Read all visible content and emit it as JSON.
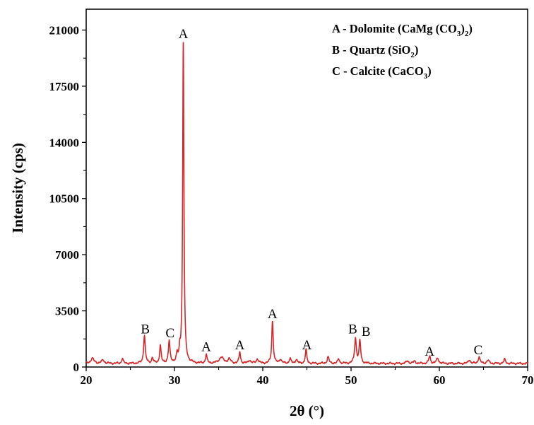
{
  "chart_data": {
    "type": "line",
    "xlabel": "2θ (°)",
    "ylabel": "Intensity (cps)",
    "xlim": [
      20,
      70
    ],
    "ylim": [
      0,
      22300
    ],
    "x_ticks": [
      20,
      30,
      40,
      50,
      60,
      70
    ],
    "y_ticks": [
      0,
      3500,
      7000,
      10500,
      14000,
      17500,
      21000
    ],
    "grid": false,
    "line_color": "#d62728",
    "baseline": 220,
    "series": [
      {
        "peaks": [
          {
            "x": 20.7,
            "y": 320,
            "w": 0.22
          },
          {
            "x": 21.9,
            "y": 200,
            "w": 0.2
          },
          {
            "x": 24.1,
            "y": 320,
            "w": 0.1
          },
          {
            "x": 26.6,
            "y": 1750,
            "w": 0.11
          },
          {
            "x": 27.5,
            "y": 350,
            "w": 0.1
          },
          {
            "x": 28.4,
            "y": 1100,
            "w": 0.1
          },
          {
            "x": 29.4,
            "y": 1350,
            "w": 0.11
          },
          {
            "x": 30.3,
            "y": 450,
            "w": 0.1
          },
          {
            "x": 30.6,
            "y": 600,
            "w": 0.08
          },
          {
            "x": 31.0,
            "y": 20000,
            "w": 0.085
          },
          {
            "x": 33.6,
            "y": 550,
            "w": 0.1
          },
          {
            "x": 35.3,
            "y": 380,
            "w": 0.3
          },
          {
            "x": 36.2,
            "y": 260,
            "w": 0.2
          },
          {
            "x": 37.4,
            "y": 700,
            "w": 0.1
          },
          {
            "x": 38.5,
            "y": 200,
            "w": 0.15
          },
          {
            "x": 39.4,
            "y": 280,
            "w": 0.15
          },
          {
            "x": 41.1,
            "y": 2650,
            "w": 0.1
          },
          {
            "x": 42.0,
            "y": 250,
            "w": 0.15
          },
          {
            "x": 43.1,
            "y": 300,
            "w": 0.12
          },
          {
            "x": 43.8,
            "y": 250,
            "w": 0.12
          },
          {
            "x": 44.9,
            "y": 850,
            "w": 0.1
          },
          {
            "x": 47.4,
            "y": 400,
            "w": 0.12
          },
          {
            "x": 48.6,
            "y": 280,
            "w": 0.12
          },
          {
            "x": 50.5,
            "y": 1550,
            "w": 0.12
          },
          {
            "x": 51.0,
            "y": 1380,
            "w": 0.11
          },
          {
            "x": 56.4,
            "y": 160,
            "w": 0.15
          },
          {
            "x": 57.2,
            "y": 140,
            "w": 0.15
          },
          {
            "x": 58.9,
            "y": 450,
            "w": 0.12
          },
          {
            "x": 59.8,
            "y": 330,
            "w": 0.15
          },
          {
            "x": 63.4,
            "y": 250,
            "w": 0.12
          },
          {
            "x": 64.5,
            "y": 420,
            "w": 0.12
          },
          {
            "x": 65.5,
            "y": 200,
            "w": 0.15
          },
          {
            "x": 67.4,
            "y": 250,
            "w": 0.12
          }
        ]
      }
    ],
    "annotations": [
      {
        "text": "A",
        "x": 31.0,
        "y": 20500
      },
      {
        "text": "B",
        "x": 26.7,
        "y": 2100
      },
      {
        "text": "C",
        "x": 29.5,
        "y": 1850
      },
      {
        "text": "A",
        "x": 33.6,
        "y": 1000
      },
      {
        "text": "A",
        "x": 37.4,
        "y": 1100
      },
      {
        "text": "A",
        "x": 41.1,
        "y": 3050
      },
      {
        "text": "A",
        "x": 45.0,
        "y": 1100
      },
      {
        "text": "B",
        "x": 50.2,
        "y": 2100
      },
      {
        "text": "B",
        "x": 51.7,
        "y": 1950
      },
      {
        "text": "A",
        "x": 58.9,
        "y": 700
      },
      {
        "text": "C",
        "x": 64.4,
        "y": 800
      }
    ],
    "legend": {
      "position": "top-right",
      "entries": [
        {
          "prefix": "A - Dolomite (CaMg (CO",
          "sub1": "3",
          "mid": ")",
          "sub2": "2",
          "suffix": ")"
        },
        {
          "prefix": "B - Quartz (SiO",
          "sub1": "2",
          "mid": ")",
          "sub2": "",
          "suffix": ""
        },
        {
          "prefix": "C - Calcite (CaCO",
          "sub1": "3",
          "mid": ")",
          "sub2": "",
          "suffix": ""
        }
      ]
    }
  }
}
